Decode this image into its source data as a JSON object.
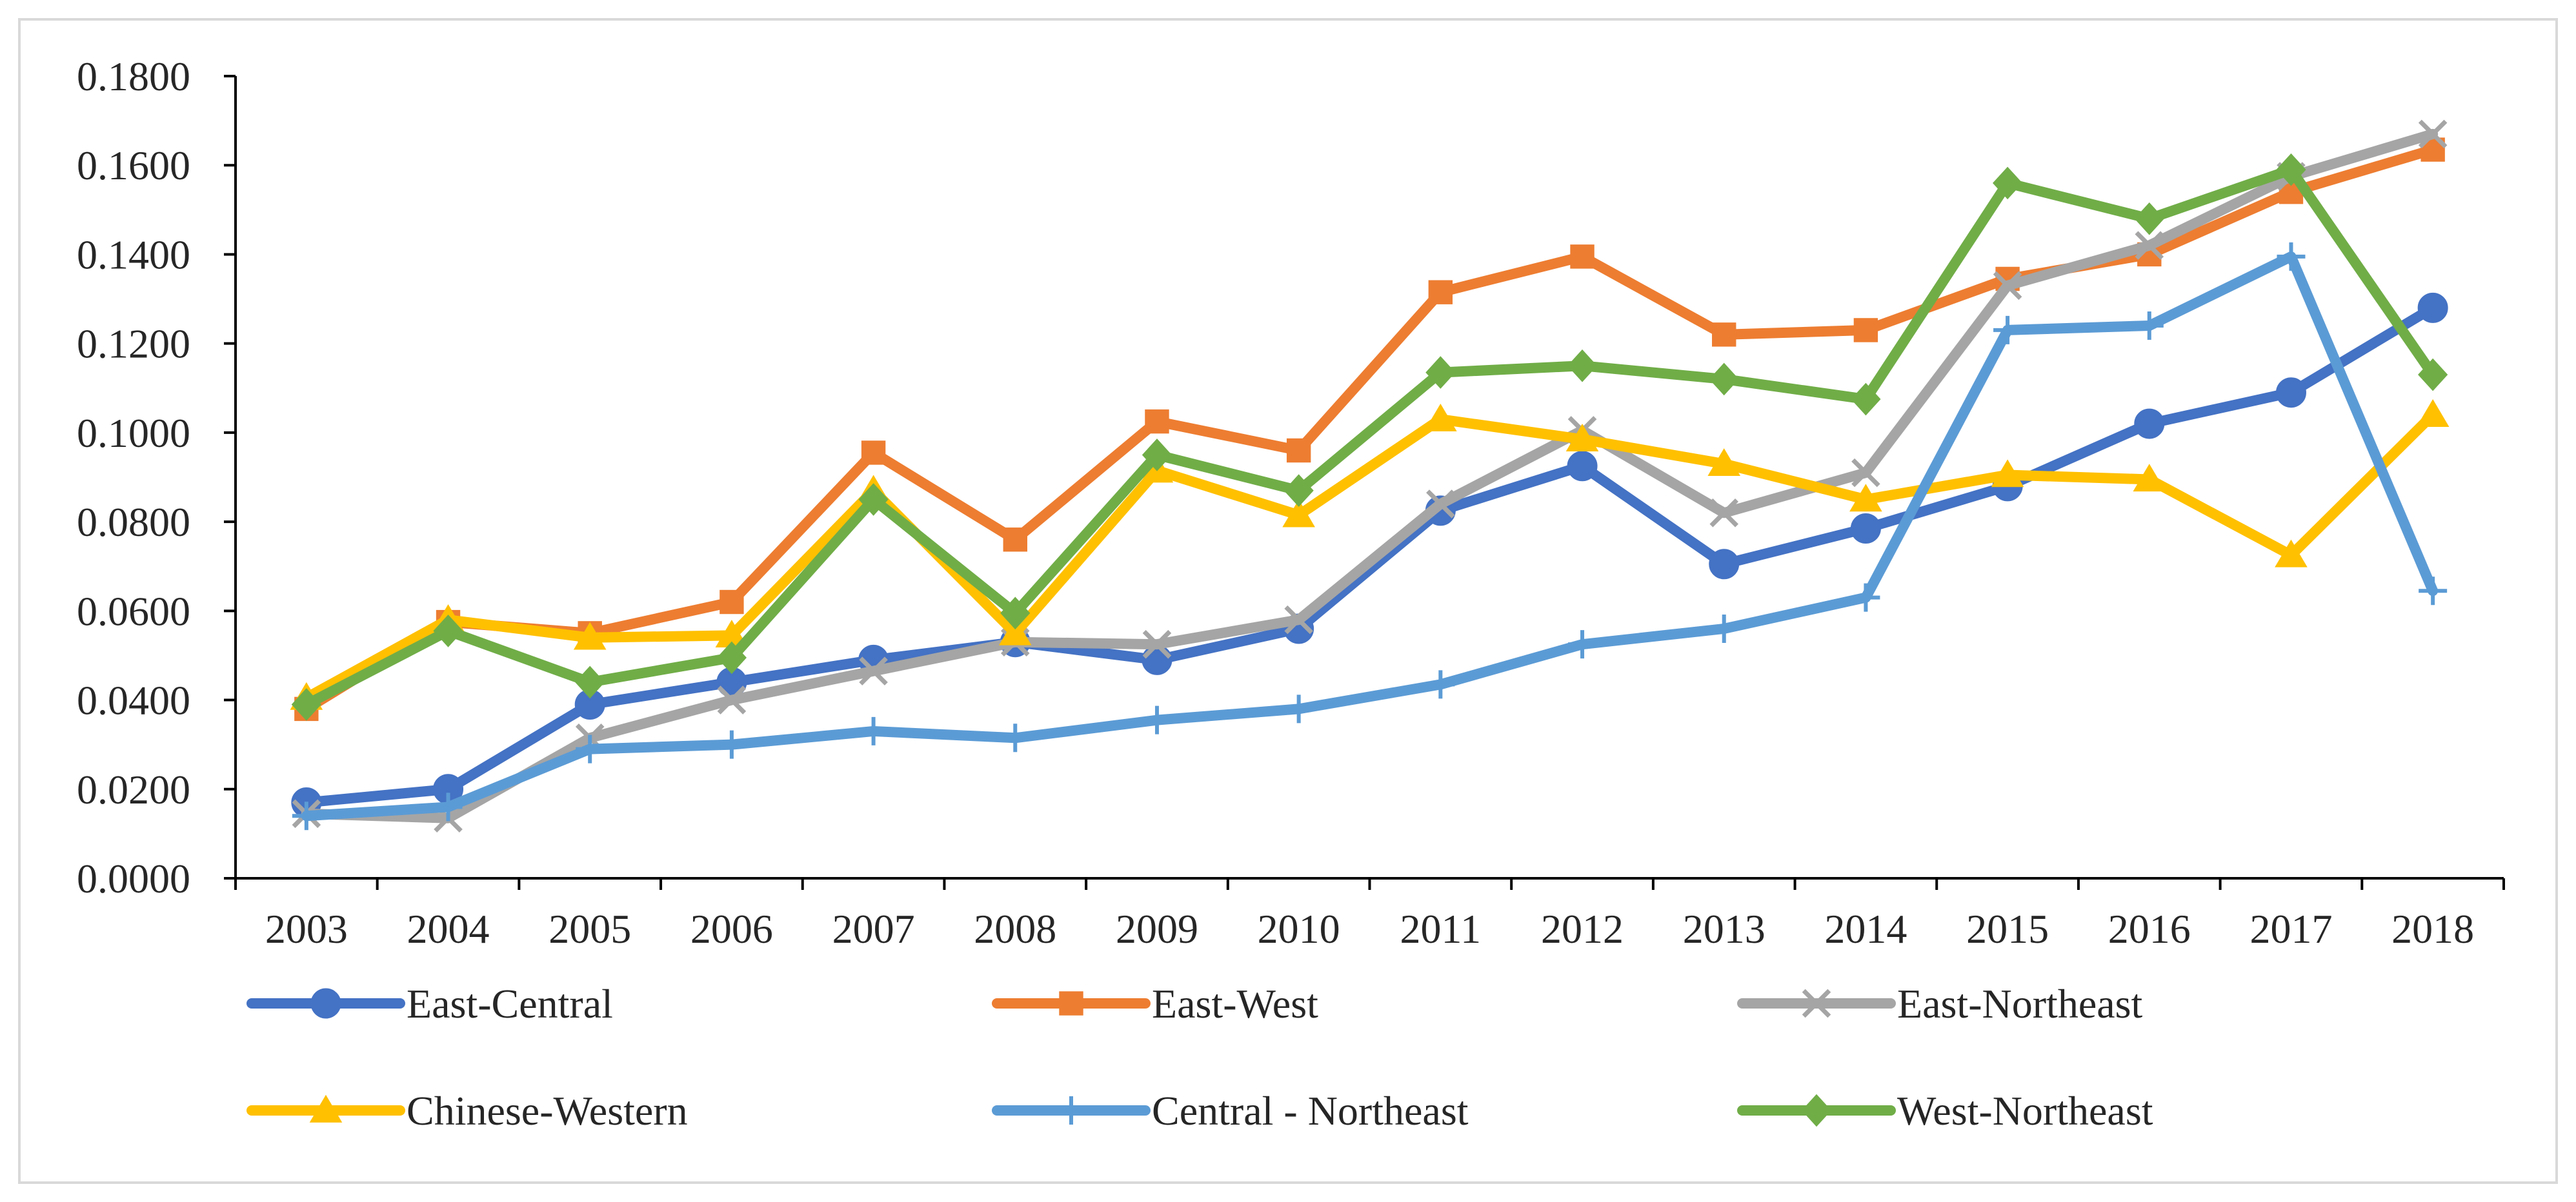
{
  "chart_data": {
    "type": "line",
    "title": "",
    "xlabel": "",
    "ylabel": "",
    "categories": [
      "2003",
      "2004",
      "2005",
      "2006",
      "2007",
      "2008",
      "2009",
      "2010",
      "2011",
      "2012",
      "2013",
      "2014",
      "2015",
      "2016",
      "2017",
      "2018"
    ],
    "ylim": [
      0,
      0.18
    ],
    "yticks": [
      "0.0000",
      "0.0200",
      "0.0400",
      "0.0600",
      "0.0800",
      "0.1000",
      "0.1200",
      "0.1400",
      "0.1600",
      "0.1800"
    ],
    "grid": false,
    "legend_position": "bottom",
    "series": [
      {
        "name": "East-Central",
        "color": "#4472c4",
        "marker": "circle",
        "values": [
          0.017,
          0.02,
          0.039,
          0.044,
          0.049,
          0.053,
          0.049,
          0.056,
          0.0825,
          0.0925,
          0.0705,
          0.0785,
          0.088,
          0.102,
          0.109,
          0.128
        ]
      },
      {
        "name": "East-West",
        "color": "#ed7d31",
        "marker": "square",
        "values": [
          0.038,
          0.0575,
          0.055,
          0.062,
          0.0955,
          0.076,
          0.1025,
          0.096,
          0.1315,
          0.1395,
          0.122,
          0.123,
          0.1345,
          0.14,
          0.154,
          0.1635
        ]
      },
      {
        "name": "East-Northeast",
        "color": "#a5a5a5",
        "marker": "x",
        "values": [
          0.0145,
          0.0135,
          0.0315,
          0.04,
          0.0465,
          0.053,
          0.0525,
          0.058,
          0.084,
          0.1005,
          0.082,
          0.091,
          0.133,
          0.142,
          0.1575,
          0.167
        ]
      },
      {
        "name": "Chinese-Western",
        "color": "#ffc000",
        "marker": "triangle",
        "values": [
          0.0405,
          0.058,
          0.054,
          0.0545,
          0.087,
          0.055,
          0.0915,
          0.0815,
          0.103,
          0.0985,
          0.093,
          0.085,
          0.0905,
          0.0895,
          0.0725,
          0.104
        ]
      },
      {
        "name": "Central - Northeast",
        "color": "#5b9bd5",
        "marker": "plus",
        "values": [
          0.014,
          0.016,
          0.029,
          0.03,
          0.033,
          0.0315,
          0.0355,
          0.038,
          0.0435,
          0.0525,
          0.056,
          0.063,
          0.123,
          0.124,
          0.1395,
          0.0645
        ]
      },
      {
        "name": "West-Northeast",
        "color": "#70ad47",
        "marker": "diamond",
        "values": [
          0.039,
          0.0555,
          0.044,
          0.0495,
          0.085,
          0.0595,
          0.095,
          0.087,
          0.1135,
          0.115,
          0.112,
          0.1075,
          0.156,
          0.148,
          0.159,
          0.113
        ]
      }
    ]
  }
}
